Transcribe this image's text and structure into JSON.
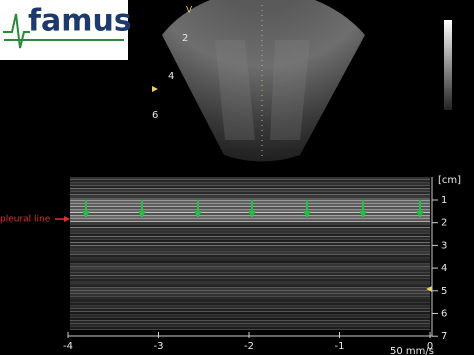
{
  "logo": {
    "text": "famus"
  },
  "sector": {
    "marker": "V",
    "depth_labels": [
      "2",
      "4",
      "6"
    ]
  },
  "mmode": {
    "unit": "[cm]",
    "depth_labels": [
      "1",
      "2",
      "3",
      "4",
      "5",
      "6",
      "7"
    ],
    "annotation": "pleural line",
    "time_labels": [
      "-4",
      "-3",
      "-2",
      "-1",
      "0"
    ],
    "sweep_speed": "50 mm/s"
  }
}
